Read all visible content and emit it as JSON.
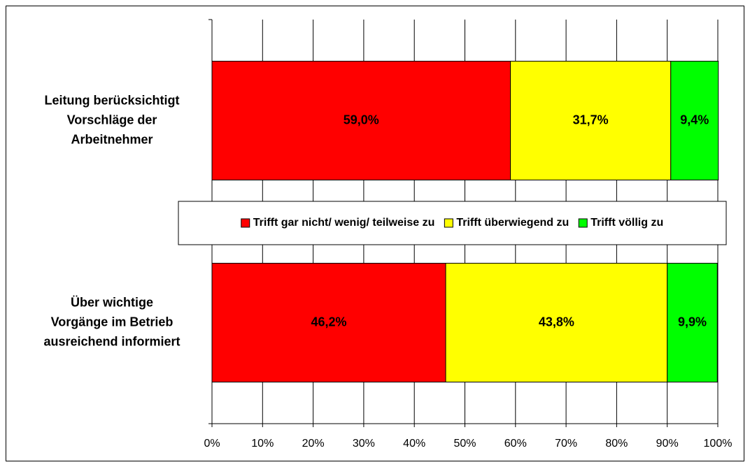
{
  "chart_data": {
    "type": "stacked_barh",
    "categories": [
      [
        "Leitung berücksichtigt",
        "Vorschläge der",
        "Arbeitnehmer"
      ],
      [
        "Über wichtige",
        "Vorgänge im Betrieb",
        "ausreichend informiert"
      ]
    ],
    "series": [
      {
        "name": "Trifft gar nicht/ wenig/ teilweise zu",
        "color": "#ff0000",
        "values": [
          59.0,
          46.2
        ],
        "value_labels": [
          "59,0%",
          "46,2%"
        ]
      },
      {
        "name": "Trifft überwiegend zu",
        "color": "#ffff00",
        "values": [
          31.7,
          43.8
        ],
        "value_labels": [
          "31,7%",
          "43,8%"
        ]
      },
      {
        "name": "Trifft völlig zu",
        "color": "#00ff00",
        "values": [
          9.4,
          9.9
        ],
        "value_labels": [
          "9,4%",
          "9,9%"
        ]
      }
    ],
    "xlim": [
      0,
      100
    ],
    "xticks": [
      {
        "value": 0,
        "label": "0%"
      },
      {
        "value": 10,
        "label": "10%"
      },
      {
        "value": 20,
        "label": "20%"
      },
      {
        "value": 30,
        "label": "30%"
      },
      {
        "value": 40,
        "label": "40%"
      },
      {
        "value": 50,
        "label": "50%"
      },
      {
        "value": 60,
        "label": "60%"
      },
      {
        "value": 70,
        "label": "70%"
      },
      {
        "value": 80,
        "label": "80%"
      },
      {
        "value": 90,
        "label": "90%"
      },
      {
        "value": 100,
        "label": "100%"
      }
    ],
    "grid": true,
    "legend": "center"
  }
}
